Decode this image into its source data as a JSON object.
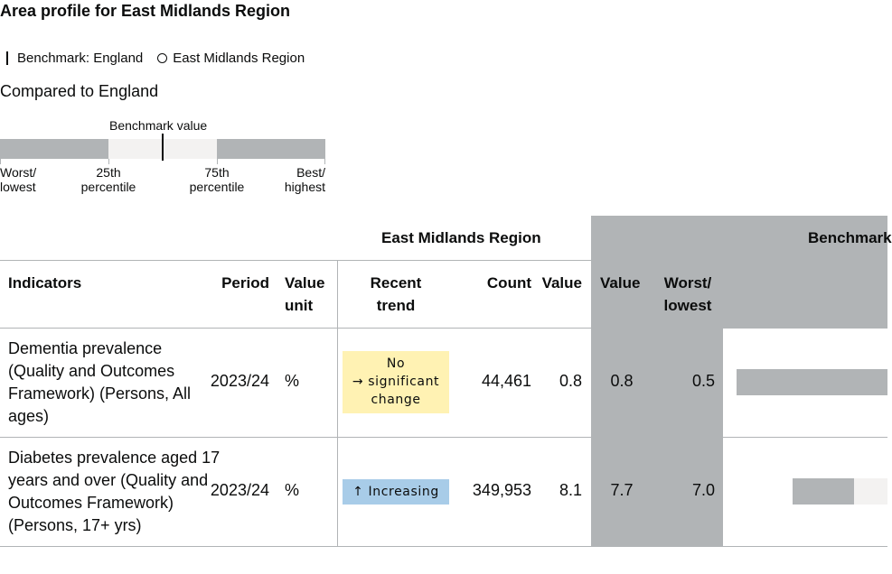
{
  "title": "Area profile for East Midlands Region",
  "legend": {
    "benchmark": "Benchmark: England",
    "area": "East Midlands Region"
  },
  "compared_to": "Compared to England",
  "key": {
    "benchmark_value": "Benchmark value",
    "worst_1": "Worst/",
    "worst_2": "lowest",
    "p25_1": "25th",
    "p25_2": "percentile",
    "p75_1": "75th",
    "p75_2": "percentile",
    "best_1": "Best/",
    "best_2": "highest"
  },
  "table": {
    "group_area": "East Midlands Region",
    "group_benchmark": "Benchmark",
    "headers": {
      "indicators": "Indicators",
      "period": "Period",
      "value_unit_1": "Value",
      "value_unit_2": "unit",
      "recent_trend_1": "Recent",
      "recent_trend_2": "trend",
      "count": "Count",
      "value": "Value",
      "bench_value": "Value",
      "worst_1": "Worst/",
      "worst_2": "lowest"
    },
    "rows": [
      {
        "name": "Dementia prevalence (Quality and Outcomes Framework) (Persons, All ages)",
        "period": "2023/24",
        "unit": "%",
        "trend_1": "No",
        "trend_2": "→ significant",
        "trend_3": "change",
        "count": "44,461",
        "value": "0.8",
        "bench_value": "0.8",
        "worst": "0.5"
      },
      {
        "name": "Diabetes prevalence aged 17 years and over (Quality and Outcomes Framework) (Persons, 17+ yrs)",
        "period": "2023/24",
        "unit": "%",
        "trend_1": "↑ Increasing",
        "count": "349,953",
        "value": "8.1",
        "bench_value": "7.7",
        "worst": "7.0"
      }
    ]
  },
  "colors": {
    "dark_grey": "#b1b4b6",
    "light_grey": "#f3f2f1",
    "no_change": "#fff2b3",
    "increasing": "#a8cce8"
  }
}
